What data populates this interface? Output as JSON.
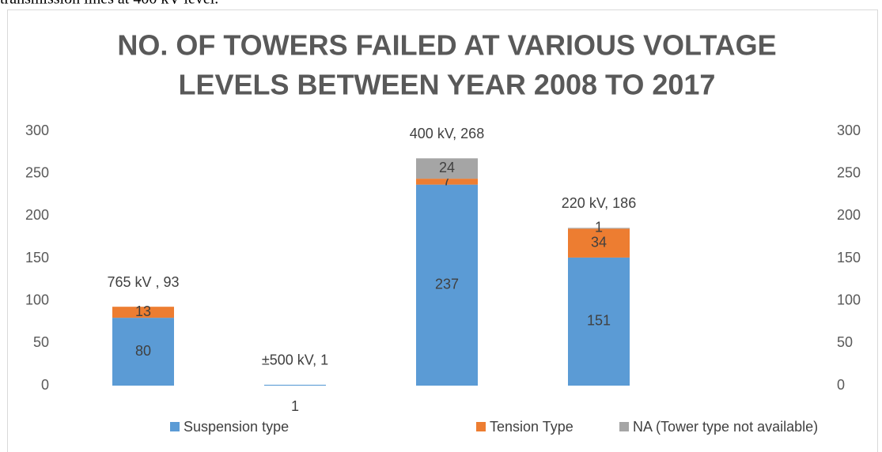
{
  "page_text": "transmission lines at 400 kV level.",
  "chart_data": {
    "type": "stacked_bar",
    "title": [
      "NO. OF TOWERS FAILED AT VARIOUS VOLTAGE",
      "LEVELS BETWEEN YEAR 2008 TO 2017"
    ],
    "categories": [
      "765 kV , 93",
      "±500 kV, 1",
      "400 kV, 268",
      "220 kV, 186"
    ],
    "series": [
      {
        "name": "Suspension type",
        "color": "#5b9bd5",
        "values": [
          80,
          1,
          237,
          151
        ]
      },
      {
        "name": "Tension Type",
        "color": "#ed7d31",
        "values": [
          13,
          null,
          7,
          34
        ]
      },
      {
        "name": "NA (Tower type not available)",
        "color": "#a5a5a5",
        "values": [
          null,
          null,
          24,
          1
        ]
      }
    ],
    "ylim": [
      0,
      300
    ],
    "yticks": [
      0,
      50,
      100,
      150,
      200,
      250,
      300
    ],
    "y2lim": [
      0,
      300
    ],
    "y2ticks": [
      0,
      50,
      100,
      150,
      200,
      250,
      300
    ],
    "grid": false,
    "legend": "bottom"
  }
}
